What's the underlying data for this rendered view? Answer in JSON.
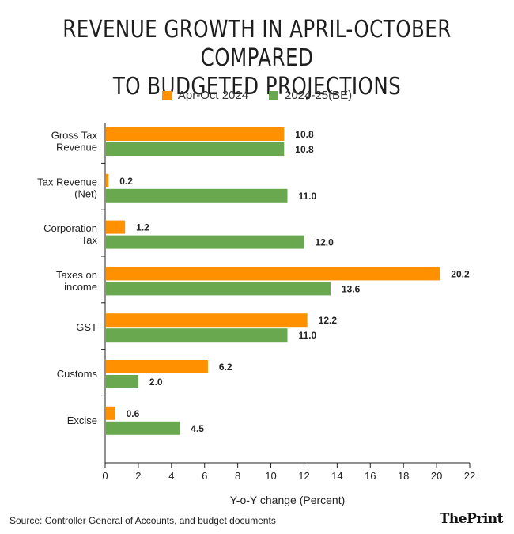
{
  "title_lines": [
    "REVENUE GROWTH IN APRIL-OCTOBER COMPARED",
    "TO BUDGETED PROJECTIONS"
  ],
  "source": "Source: Controller General of Accounts, and budget documents",
  "brand": "ThePrint",
  "chart_data": {
    "type": "bar",
    "orientation": "horizontal",
    "title": "REVENUE GROWTH IN APRIL-OCTOBER COMPARED TO BUDGETED PROJECTIONS",
    "categories": [
      [
        "Gross Tax",
        "Revenue"
      ],
      [
        "Tax Revenue",
        "(Net)"
      ],
      [
        "Corporation",
        "Tax"
      ],
      [
        "Taxes on",
        "income"
      ],
      [
        "GST"
      ],
      [
        "Customs"
      ],
      [
        "Excise"
      ]
    ],
    "series": [
      {
        "name": "Apr-Oct 2024",
        "color": "#ff9100",
        "values": [
          10.8,
          0.2,
          1.2,
          20.2,
          12.2,
          6.2,
          0.6
        ]
      },
      {
        "name": "2024-25(BE)",
        "color": "#6aa84f",
        "values": [
          10.8,
          11.0,
          12.0,
          13.6,
          11.0,
          2.0,
          4.5
        ]
      }
    ],
    "value_labels": [
      [
        "10.8",
        "0.2",
        "1.2",
        "20.2",
        "12.2",
        "6.2",
        "0.6"
      ],
      [
        "10.8",
        "11.0",
        "12.0",
        "13.6",
        "11.0",
        "2.0",
        "4.5"
      ]
    ],
    "xlabel": "Y-o-Y change (Percent)",
    "ylabel": "",
    "xlim": [
      0,
      22
    ],
    "xticks": [
      0,
      2,
      4,
      6,
      8,
      10,
      12,
      14,
      16,
      18,
      20,
      22
    ],
    "grid": false,
    "legend": "top-center"
  }
}
